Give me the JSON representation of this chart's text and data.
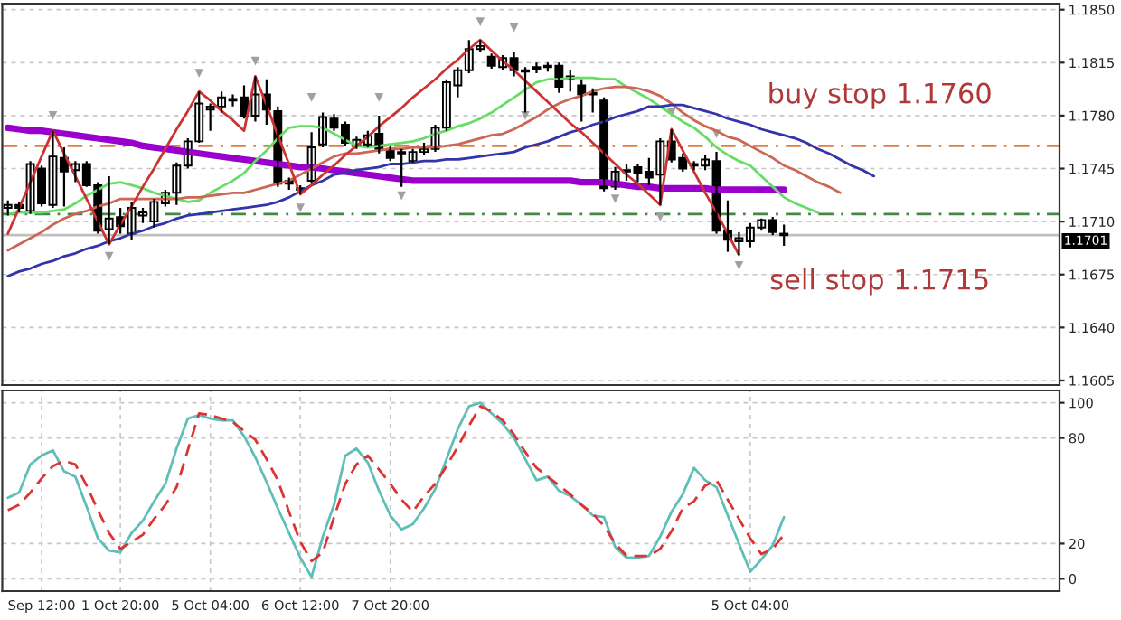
{
  "chart_data": [
    {
      "type": "candlestick",
      "categories": [
        null,
        null,
        null,
        null,
        null,
        null,
        null,
        null,
        null,
        null,
        null,
        null,
        null,
        null,
        null,
        null,
        null,
        null,
        null,
        null,
        null,
        null,
        null,
        null,
        null,
        null,
        null,
        null,
        null,
        null,
        null,
        null,
        null,
        null,
        null,
        null,
        null,
        null,
        null,
        null,
        null,
        null,
        null,
        null,
        null,
        null,
        null,
        null,
        null,
        null,
        null,
        null,
        null,
        null,
        null,
        null,
        null,
        null,
        null,
        null,
        null,
        null,
        null,
        null,
        null,
        null,
        null,
        null,
        null,
        null,
        null,
        null,
        null,
        null,
        null,
        null,
        null,
        null,
        null,
        null,
        null,
        null,
        null,
        null,
        null,
        null,
        null,
        null,
        null,
        null,
        null,
        null,
        null,
        null
      ],
      "ohlc": [
        [
          1.1719,
          1.1724,
          1.1714,
          1.1721
        ],
        [
          1.1721,
          1.1723,
          1.1716,
          1.1719
        ],
        [
          1.1717,
          1.175,
          1.1715,
          1.1748
        ],
        [
          1.1745,
          1.1747,
          1.172,
          1.1722
        ],
        [
          1.1721,
          1.177,
          1.1719,
          1.1753
        ],
        [
          1.1752,
          1.1759,
          1.172,
          1.1743
        ],
        [
          1.1744,
          1.175,
          1.1736,
          1.1748
        ],
        [
          1.1748,
          1.175,
          1.1733,
          1.1734
        ],
        [
          1.1734,
          1.1736,
          1.1702,
          1.1704
        ],
        [
          1.1705,
          1.174,
          1.1695,
          1.1712
        ],
        [
          1.1713,
          1.1719,
          1.1702,
          1.1707
        ],
        [
          1.1702,
          1.1723,
          1.1698,
          1.1719
        ],
        [
          1.1714,
          1.1719,
          1.1709,
          1.1716
        ],
        [
          1.171,
          1.1725,
          1.1706,
          1.1723
        ],
        [
          1.1722,
          1.1731,
          1.172,
          1.1729
        ],
        [
          1.1729,
          1.1749,
          1.1721,
          1.1747
        ],
        [
          1.1747,
          1.1765,
          1.1745,
          1.1763
        ],
        [
          1.1763,
          1.1796,
          1.1762,
          1.1788
        ],
        [
          1.1784,
          1.1788,
          1.177,
          1.1786
        ],
        [
          1.1786,
          1.1796,
          1.1782,
          1.1792
        ],
        [
          1.1791,
          1.1794,
          1.1786,
          1.179
        ],
        [
          1.1792,
          1.18,
          1.1778,
          1.178
        ],
        [
          1.178,
          1.1806,
          1.1776,
          1.1794
        ],
        [
          1.1794,
          1.1804,
          1.1774,
          1.1784
        ],
        [
          1.1783,
          1.1786,
          1.1733,
          1.1735
        ],
        [
          1.1737,
          1.1739,
          1.1731,
          1.1735
        ],
        [
          1.1732,
          1.1734,
          1.1728,
          1.1731
        ],
        [
          1.1737,
          1.1769,
          1.1735,
          1.1759
        ],
        [
          1.1761,
          1.1782,
          1.1759,
          1.1779
        ],
        [
          1.1778,
          1.1781,
          1.177,
          1.1772
        ],
        [
          1.1774,
          1.1776,
          1.176,
          1.1762
        ],
        [
          1.176,
          1.1766,
          1.1758,
          1.1764
        ],
        [
          1.1761,
          1.177,
          1.1759,
          1.1767
        ],
        [
          1.1768,
          1.178,
          1.1755,
          1.1758
        ],
        [
          1.1758,
          1.176,
          1.175,
          1.1752
        ],
        [
          1.1756,
          1.1758,
          1.1733,
          1.1755
        ],
        [
          1.175,
          1.1758,
          1.1749,
          1.1756
        ],
        [
          1.1756,
          1.1762,
          1.1754,
          1.1758
        ],
        [
          1.1758,
          1.1774,
          1.1756,
          1.1772
        ],
        [
          1.1772,
          1.1804,
          1.177,
          1.1802
        ],
        [
          1.18,
          1.1812,
          1.1792,
          1.181
        ],
        [
          1.181,
          1.183,
          1.1808,
          1.1824
        ],
        [
          1.1824,
          1.183,
          1.1822,
          1.1826
        ],
        [
          1.1819,
          1.1821,
          1.1811,
          1.1813
        ],
        [
          1.1812,
          1.182,
          1.181,
          1.1818
        ],
        [
          1.1818,
          1.1822,
          1.1806,
          1.181
        ],
        [
          1.181,
          1.1812,
          1.1782,
          1.1809
        ],
        [
          1.1811,
          1.1815,
          1.1808,
          1.1812
        ],
        [
          1.1812,
          1.1815,
          1.1809,
          1.1813
        ],
        [
          1.1813,
          1.1815,
          1.1795,
          1.1799
        ],
        [
          1.1806,
          1.181,
          1.1796,
          1.1804
        ],
        [
          1.18,
          1.1804,
          1.1776,
          1.1794
        ],
        [
          1.1795,
          1.1798,
          1.1782,
          1.1794
        ],
        [
          1.179,
          1.1792,
          1.173,
          1.1732
        ],
        [
          1.1733,
          1.1746,
          1.1731,
          1.1743
        ],
        [
          1.1743,
          1.1748,
          1.1737,
          1.1744
        ],
        [
          1.1746,
          1.1748,
          1.1736,
          1.1742
        ],
        [
          1.1743,
          1.1752,
          1.1734,
          1.1739
        ],
        [
          1.1741,
          1.1765,
          1.1721,
          1.1763
        ],
        [
          1.1763,
          1.1771,
          1.1749,
          1.1751
        ],
        [
          1.1752,
          1.1755,
          1.1743,
          1.1745
        ],
        [
          1.1748,
          1.175,
          1.1744,
          1.1747
        ],
        [
          1.1747,
          1.1754,
          1.1744,
          1.1751
        ],
        [
          1.175,
          1.1756,
          1.1702,
          1.1704
        ],
        [
          1.1704,
          1.1724,
          1.169,
          1.1698
        ],
        [
          1.1697,
          1.1703,
          1.1688,
          1.1699
        ],
        [
          1.1697,
          1.1709,
          1.1693,
          1.1706
        ],
        [
          1.1706,
          1.1712,
          1.1704,
          1.1711
        ],
        [
          1.1711,
          1.1713,
          1.1701,
          1.1703
        ],
        [
          1.1702,
          1.1708,
          1.1694,
          1.1701
        ],
        null,
        null,
        null,
        null,
        null,
        null,
        null,
        null,
        null,
        null,
        null,
        null,
        null,
        null,
        null,
        null,
        null,
        null,
        null,
        null,
        null,
        null,
        null,
        null
      ],
      "colors": [
        "#ffffff",
        "#000000",
        "#ffffff",
        "#000000",
        "#ffffff",
        "#000000",
        "#ffffff",
        "#000000",
        "#000000",
        "#ffffff",
        "#000000",
        "#ffffff",
        "#ffffff",
        "#ffffff",
        "#ffffff",
        "#ffffff",
        "#ffffff",
        "#ffffff",
        "#ffffff",
        "#ffffff",
        "#000000",
        "#000000",
        "#ffffff",
        "#000000",
        "#000000",
        "#000000",
        "#000000",
        "#ffffff",
        "#ffffff",
        "#000000",
        "#000000",
        "#ffffff",
        "#ffffff",
        "#000000",
        "#000000",
        "#000000",
        "#ffffff",
        "#ffffff",
        "#ffffff",
        "#ffffff",
        "#ffffff",
        "#ffffff",
        "#ffffff",
        "#000000",
        "#ffffff",
        "#000000",
        "#000000",
        "#ffffff",
        "#ffffff",
        "#000000",
        "#000000",
        "#000000",
        "#000000",
        "#000000",
        "#ffffff",
        "#ffffff",
        "#000000",
        "#000000",
        "#ffffff",
        "#000000",
        "#000000",
        "#000000",
        "#ffffff",
        "#000000",
        "#000000",
        "#ffffff",
        "#ffffff",
        "#ffffff",
        "#000000",
        "#000000",
        null,
        null,
        null,
        null,
        null,
        null,
        null,
        null,
        null,
        null,
        null,
        null,
        null,
        null,
        null,
        null,
        null,
        null,
        null,
        null,
        null,
        null,
        null,
        null
      ],
      "series": [
        {
          "type": "line",
          "color": "#9900cc",
          "values": [
            1.1772,
            1.1771,
            1.177,
            1.177,
            1.1769,
            1.1768,
            1.1767,
            1.1766,
            1.1765,
            1.1764,
            1.1763,
            1.1762,
            1.176,
            1.1759,
            1.1758,
            1.1757,
            1.1756,
            1.1755,
            1.1754,
            1.1753,
            1.1752,
            1.1751,
            1.175,
            1.1749,
            1.1748,
            1.1747,
            1.1746,
            1.1746,
            1.1745,
            1.1744,
            1.1743,
            1.1742,
            1.1741,
            1.174,
            1.1739,
            1.1738,
            1.1737,
            1.1737,
            1.1737,
            1.1737,
            1.1737,
            1.1737,
            1.1737,
            1.1737,
            1.1737,
            1.1737,
            1.1737,
            1.1737,
            1.1737,
            1.1737,
            1.1737,
            1.1736,
            1.1736,
            1.1736,
            1.1735,
            1.1734,
            1.1733,
            1.1733,
            1.1732,
            1.1732,
            1.1732,
            1.1732,
            1.1732,
            1.1731,
            1.1731,
            1.1731,
            1.1731,
            1.1731,
            1.1731,
            1.1731,
            null,
            null,
            null,
            null,
            null,
            null,
            null,
            null,
            null,
            null,
            null,
            null,
            null,
            null,
            null,
            null,
            null,
            null,
            null,
            null,
            null,
            null,
            null,
            null
          ]
        },
        {
          "type": "line",
          "color": "#66dd66",
          "values": [
            1.1715,
            1.1716,
            1.1716,
            1.1716,
            1.1717,
            1.1718,
            1.1722,
            1.1727,
            1.1731,
            1.1735,
            1.1736,
            1.1734,
            1.1732,
            1.1729,
            1.1727,
            1.1725,
            1.1723,
            1.1724,
            1.1729,
            1.1733,
            1.1737,
            1.1742,
            1.175,
            1.1757,
            1.1765,
            1.1772,
            1.1773,
            1.1773,
            1.1772,
            1.1768,
            1.1764,
            1.176,
            1.1759,
            1.176,
            1.1761,
            1.1762,
            1.1763,
            1.1765,
            1.1768,
            1.177,
            1.1773,
            1.1775,
            1.1778,
            1.1782,
            1.1787,
            1.1792,
            1.1797,
            1.1802,
            1.1804,
            1.1804,
            1.1805,
            1.1805,
            1.1805,
            1.1804,
            1.1804,
            1.1799,
            1.1795,
            1.1791,
            1.1786,
            1.1781,
            1.1776,
            1.1772,
            1.1766,
            1.1759,
            1.1754,
            1.175,
            1.1747,
            1.174,
            1.1733,
            1.1726,
            1.1722,
            1.1719,
            1.1716,
            null,
            null,
            null,
            null,
            null,
            null,
            null,
            null,
            null,
            null,
            null,
            null,
            null,
            null,
            null,
            null,
            null,
            null,
            null,
            null,
            null
          ]
        },
        {
          "type": "line",
          "color": "#cc6655",
          "values": [
            1.1691,
            1.1695,
            1.1699,
            1.1703,
            1.1708,
            1.1712,
            1.1715,
            1.1717,
            1.172,
            1.1722,
            1.1725,
            1.1725,
            1.1725,
            1.1725,
            1.1725,
            1.1725,
            1.1726,
            1.1726,
            1.1727,
            1.1728,
            1.1729,
            1.1729,
            1.1731,
            1.1733,
            1.1735,
            1.1737,
            1.1741,
            1.1745,
            1.1749,
            1.1753,
            1.1755,
            1.1755,
            1.1756,
            1.1757,
            1.1758,
            1.1758,
            1.1759,
            1.1759,
            1.1759,
            1.176,
            1.1761,
            1.1763,
            1.1765,
            1.1767,
            1.1768,
            1.1771,
            1.1775,
            1.1779,
            1.1784,
            1.1788,
            1.1791,
            1.1793,
            1.1796,
            1.1798,
            1.1799,
            1.1799,
            1.1798,
            1.1796,
            1.1793,
            1.1788,
            1.1782,
            1.1777,
            1.1773,
            1.177,
            1.1766,
            1.1764,
            1.176,
            1.1756,
            1.1752,
            1.1747,
            1.1744,
            1.174,
            1.1736,
            1.1733,
            1.1729,
            null,
            null,
            null,
            null,
            null,
            null,
            null,
            null,
            null,
            null,
            null,
            null,
            null,
            null,
            null,
            null,
            null,
            null,
            null
          ]
        },
        {
          "type": "line",
          "color": "#3333aa",
          "values": [
            1.1674,
            1.1677,
            1.1679,
            1.1682,
            1.1684,
            1.1687,
            1.1689,
            1.1692,
            1.1694,
            1.1697,
            1.1699,
            1.1702,
            1.1704,
            1.1707,
            1.1709,
            1.1712,
            1.1714,
            1.1715,
            1.1716,
            1.1717,
            1.1718,
            1.1719,
            1.172,
            1.1721,
            1.1723,
            1.1726,
            1.173,
            1.1734,
            1.1737,
            1.1741,
            1.1742,
            1.1744,
            1.1745,
            1.1746,
            1.1748,
            1.1748,
            1.1749,
            1.175,
            1.175,
            1.1751,
            1.1751,
            1.1752,
            1.1753,
            1.1754,
            1.1755,
            1.1756,
            1.1759,
            1.1761,
            1.1763,
            1.1766,
            1.1769,
            1.1771,
            1.1774,
            1.1776,
            1.1779,
            1.1781,
            1.1783,
            1.1786,
            1.1786,
            1.1787,
            1.1787,
            1.1785,
            1.1783,
            1.1781,
            1.1778,
            1.1776,
            1.1774,
            1.1771,
            1.1769,
            1.1767,
            1.1765,
            1.1762,
            1.1758,
            1.1755,
            1.1751,
            1.1747,
            1.1744,
            1.174,
            null,
            null,
            null,
            null,
            null,
            null,
            null,
            null,
            null,
            null,
            null,
            null,
            null,
            null,
            null,
            null
          ]
        },
        {
          "type": "line",
          "color": "#cc3333",
          "values": [
            1.1702,
            1.1719,
            1.1736,
            1.1753,
            1.177,
            1.1755,
            1.174,
            1.1725,
            1.171,
            1.1695,
            1.1708,
            1.172,
            1.1733,
            1.1745,
            1.1758,
            1.1771,
            1.1783,
            1.1796,
            1.179,
            1.1783,
            1.1777,
            1.177,
            1.1806,
            1.1787,
            1.1767,
            1.1748,
            1.1728,
            1.1734,
            1.1741,
            1.1747,
            1.1754,
            1.176,
            1.1766,
            1.1773,
            1.1779,
            1.1785,
            1.1792,
            1.1798,
            1.1804,
            1.1811,
            1.1817,
            1.1824,
            1.183,
            1.1823,
            1.1816,
            1.181,
            1.1803,
            1.1796,
            1.1789,
            1.1782,
            1.1775,
            1.1769,
            1.1762,
            1.1755,
            1.1748,
            1.1741,
            1.1735,
            1.1728,
            1.1721,
            1.1771,
            1.1757,
            1.1743,
            1.1729,
            1.1716,
            1.1702,
            1.1688,
            null,
            null,
            null,
            null,
            null,
            null,
            null,
            null,
            null,
            null,
            null,
            null,
            null,
            null,
            null,
            null,
            null,
            null,
            null,
            null,
            null,
            null,
            null,
            null,
            null,
            null,
            null,
            null
          ]
        },
        {
          "type": "scatter",
          "color": "#a0a0a0",
          "marker": "triangle",
          "values": [
            null,
            null,
            null,
            null,
            1.178,
            null,
            null,
            null,
            null,
            null,
            null,
            null,
            null,
            null,
            null,
            null,
            null,
            1.1808,
            null,
            null,
            null,
            null,
            1.1816,
            null,
            null,
            null,
            null,
            1.1792,
            null,
            null,
            null,
            null,
            null,
            1.1792,
            null,
            null,
            null,
            null,
            null,
            null,
            null,
            null,
            1.1842,
            null,
            null,
            1.1838,
            null,
            null,
            null,
            null,
            null,
            null,
            null,
            null,
            null,
            null,
            null,
            null,
            null,
            1.1782,
            null,
            null,
            null,
            1.1768,
            null,
            null,
            null,
            null,
            null,
            null,
            null,
            null,
            null,
            null,
            null,
            null,
            null,
            null,
            null,
            null,
            null,
            null,
            null,
            null,
            null,
            null,
            null,
            null,
            null,
            null,
            null,
            null,
            null,
            null
          ]
        },
        {
          "type": "scatter",
          "color": "#a0a0a0",
          "marker": "triangle",
          "values": [
            null,
            null,
            null,
            null,
            null,
            null,
            null,
            null,
            null,
            1.1687,
            null,
            null,
            null,
            null,
            null,
            null,
            null,
            null,
            null,
            null,
            null,
            null,
            null,
            null,
            null,
            null,
            1.1719,
            null,
            null,
            null,
            null,
            null,
            null,
            null,
            null,
            1.1727,
            null,
            null,
            null,
            null,
            null,
            null,
            null,
            null,
            null,
            null,
            1.178,
            null,
            null,
            null,
            null,
            null,
            null,
            null,
            1.1725,
            null,
            null,
            null,
            1.1713,
            null,
            null,
            null,
            null,
            null,
            null,
            1.1681,
            null,
            null,
            null,
            null,
            null,
            null,
            null,
            null,
            null,
            null,
            null,
            null,
            null,
            null,
            null,
            null,
            null,
            null,
            null,
            null,
            null,
            null,
            null,
            null,
            null,
            null,
            null,
            null
          ]
        }
      ],
      "ref_lines": [
        {
          "axis": "y",
          "value": 1.176,
          "label": "buy stop 1.1760",
          "color": "#e08040",
          "line_style": "dashed"
        },
        {
          "axis": "y",
          "value": 1.1715,
          "label": "sell stop 1.1715",
          "color": "#448844",
          "line_style": "dashed"
        },
        {
          "axis": "y",
          "value": 1.1701,
          "label": "1.1701",
          "color": "#c0c0c0",
          "line_style": "solid"
        }
      ],
      "ylim": [
        1.1602,
        1.1854
      ],
      "yticks": [
        {
          "value": 1.1605,
          "label": "1.1605"
        },
        {
          "value": 1.164,
          "label": "1.1640"
        },
        {
          "value": 1.1675,
          "label": "1.1675"
        },
        {
          "value": 1.171,
          "label": "1.1710"
        },
        {
          "value": 1.1745,
          "label": "1.1745"
        },
        {
          "value": 1.178,
          "label": "1.1780"
        },
        {
          "value": 1.1815,
          "label": "1.1815"
        },
        {
          "value": 1.185,
          "label": "1.1850"
        }
      ],
      "tick_labels": "y",
      "grid": true
    },
    {
      "type": "line",
      "ylim": [
        -7,
        107
      ],
      "yticks": [
        0,
        20,
        80,
        100
      ],
      "categories": [
        null,
        null,
        null,
        "Sep 12:00",
        null,
        null,
        null,
        null,
        null,
        null,
        "1 Oct 20:00",
        null,
        null,
        null,
        null,
        null,
        null,
        null,
        "5 Oct 04:00",
        null,
        null,
        null,
        null,
        null,
        null,
        null,
        "6 Oct 12:00",
        null,
        null,
        null,
        null,
        null,
        null,
        null,
        "7 Oct 20:00",
        null,
        null,
        null,
        null,
        null,
        null,
        null,
        null,
        null,
        null,
        null,
        null,
        null,
        null,
        null,
        null,
        null,
        null,
        null,
        null,
        null,
        null,
        null,
        null,
        null,
        null,
        null,
        null,
        null,
        null,
        null,
        "5 Oct 04:00",
        null,
        null,
        null,
        null,
        null,
        null,
        null,
        null,
        null,
        null,
        null,
        null,
        null,
        null,
        null,
        null,
        null,
        null,
        null,
        null,
        null,
        null,
        null,
        null,
        null,
        null,
        null
      ],
      "series": [
        {
          "color": "#5fbfb8",
          "line_style": "solid",
          "values": [
            46,
            49,
            65,
            70,
            73,
            61,
            58,
            41,
            23,
            16,
            15,
            26,
            33,
            44,
            54,
            74,
            91,
            93,
            91,
            90,
            90,
            81,
            69,
            55,
            40,
            26,
            12,
            1,
            24,
            42,
            70,
            74,
            66,
            50,
            36,
            28,
            31,
            40,
            51,
            68,
            85,
            98,
            100,
            94,
            88,
            80,
            68,
            56,
            58,
            50,
            47,
            42,
            36,
            35,
            18,
            12,
            12,
            13,
            24,
            38,
            48,
            63,
            56,
            52,
            36,
            20,
            4,
            11,
            19,
            35,
            null,
            null,
            null,
            null,
            null,
            null,
            null,
            null,
            null,
            null,
            null,
            null,
            null,
            null,
            null,
            null,
            null,
            null,
            null,
            null,
            null,
            null,
            null,
            null
          ]
        },
        {
          "color": "#dd3333",
          "line_style": "dashed",
          "values": [
            39,
            42,
            49,
            57,
            64,
            67,
            65,
            53,
            39,
            26,
            17,
            21,
            25,
            34,
            42,
            52,
            73,
            94,
            93,
            91,
            89,
            84,
            79,
            68,
            56,
            38,
            21,
            10,
            15,
            35,
            54,
            65,
            70,
            62,
            54,
            45,
            38,
            47,
            54,
            64,
            75,
            87,
            98,
            95,
            90,
            82,
            72,
            63,
            58,
            53,
            48,
            42,
            37,
            30,
            20,
            13,
            13,
            13,
            17,
            27,
            40,
            44,
            53,
            56,
            45,
            34,
            23,
            14,
            17,
            25,
            null,
            null,
            null,
            null,
            null,
            null,
            null,
            null,
            null,
            null,
            null,
            null,
            null,
            null,
            null,
            null,
            null,
            null,
            null,
            null,
            null,
            null,
            null,
            null
          ]
        }
      ],
      "grid": true
    }
  ]
}
